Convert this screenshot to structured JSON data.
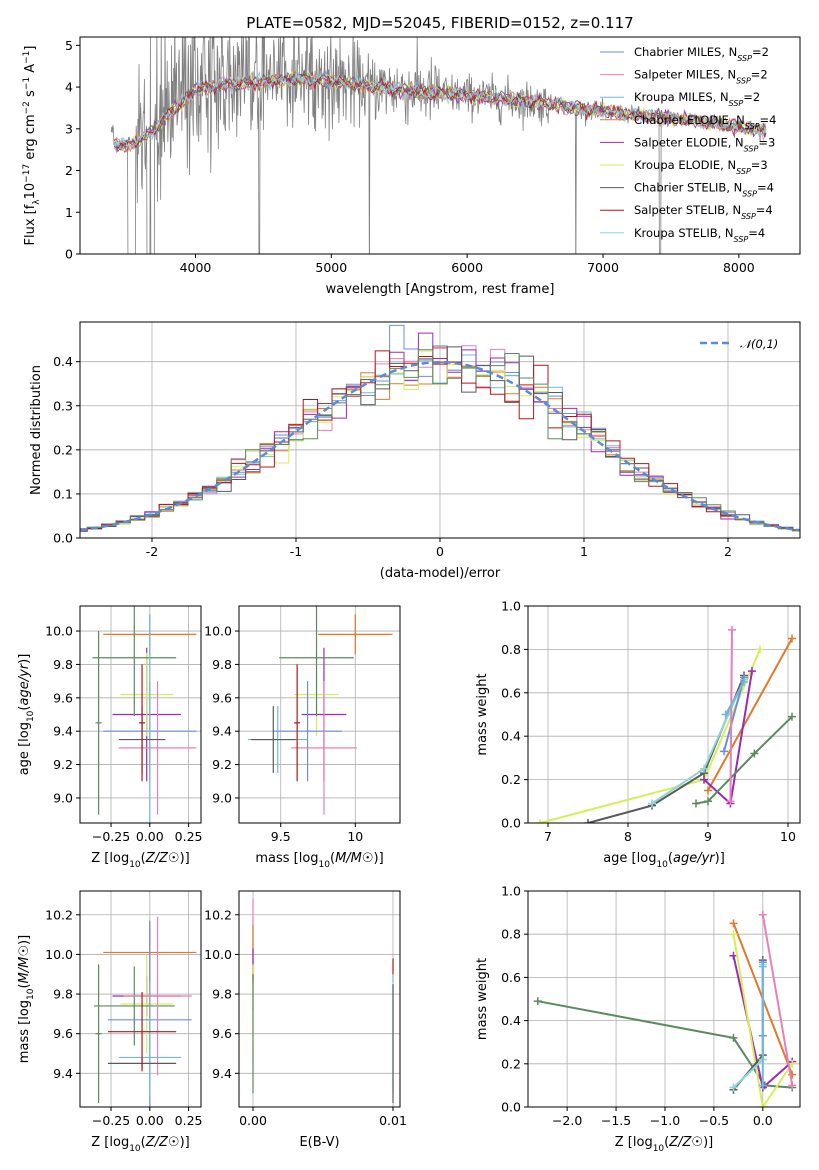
{
  "figure_title": "PLATE=0582, MJD=52045, FIBERID=0152, z=0.117",
  "colors": {
    "Chabrier MILES": "#6b8fe0",
    "Salpeter MILES": "#e87fb9",
    "Kroupa MILES": "#6fb9e0",
    "Chabrier ELODIE": "#e07a2a",
    "Salpeter ELODIE": "#9b2ab5",
    "Kroupa ELODIE": "#d7ee58",
    "Chabrier STELIB": "#5a5a5a",
    "Salpeter STELIB": "#b01818",
    "Kroupa STELIB": "#8fd5d8",
    "ELODIE green": "#5b8a60",
    "data": "#808080",
    "gauss": "#5b8bd8"
  },
  "chart_data": [
    {
      "id": "spectrum",
      "type": "line",
      "title": "PLATE=0582, MJD=52045, FIBERID=0152, z=0.117",
      "xlabel": "wavelength [Angstrom, rest frame]",
      "ylabel": "Flux [f_λ10^-17 erg cm^-2 s^-1 A^-1]",
      "xlim": [
        3150,
        8450
      ],
      "ylim": [
        0,
        5.2
      ],
      "xticks": [
        4000,
        5000,
        6000,
        7000,
        8000
      ],
      "yticks": [
        0,
        1,
        2,
        3,
        4,
        5
      ],
      "legend_position": "top-right",
      "legend": [
        {
          "name": "Chabrier MILES, N",
          "sub": "SSP",
          "suffix": "=2"
        },
        {
          "name": "Salpeter MILES, N",
          "sub": "SSP",
          "suffix": "=2"
        },
        {
          "name": "Kroupa MILES, N",
          "sub": "SSP",
          "suffix": "=2"
        },
        {
          "name": "Chabrier ELODIE, N",
          "sub": "SSP",
          "suffix": "=4"
        },
        {
          "name": "Salpeter ELODIE, N",
          "sub": "SSP",
          "suffix": "=3"
        },
        {
          "name": "Kroupa ELODIE, N",
          "sub": "SSP",
          "suffix": "=3"
        },
        {
          "name": "Chabrier STELIB, N",
          "sub": "SSP",
          "suffix": "=4"
        },
        {
          "name": "Salpeter STELIB, N",
          "sub": "SSP",
          "suffix": "=4"
        },
        {
          "name": "Kroupa STELIB, N",
          "sub": "SSP",
          "suffix": "=4"
        }
      ],
      "continuum": [
        [
          3400,
          2.65
        ],
        [
          3500,
          2.6
        ],
        [
          3600,
          2.75
        ],
        [
          3700,
          3.0
        ],
        [
          3800,
          3.35
        ],
        [
          3900,
          3.6
        ],
        [
          4000,
          3.95
        ],
        [
          4100,
          4.0
        ],
        [
          4200,
          4.05
        ],
        [
          4400,
          4.1
        ],
        [
          4600,
          4.15
        ],
        [
          4800,
          4.2
        ],
        [
          5000,
          4.15
        ],
        [
          5200,
          4.05
        ],
        [
          5500,
          3.95
        ],
        [
          5800,
          3.85
        ],
        [
          6000,
          3.8
        ],
        [
          6300,
          3.7
        ],
        [
          6600,
          3.6
        ],
        [
          6900,
          3.45
        ],
        [
          7200,
          3.35
        ],
        [
          7500,
          3.25
        ],
        [
          7800,
          3.15
        ],
        [
          8100,
          3.0
        ],
        [
          8200,
          2.95
        ]
      ]
    },
    {
      "id": "residuals",
      "type": "line",
      "xlabel": "(data-model)/error",
      "ylabel": "Normed distribution",
      "xlim": [
        -2.5,
        2.5
      ],
      "ylim": [
        0,
        0.49
      ],
      "xticks": [
        -2,
        -1,
        0,
        1,
        2
      ],
      "yticks": [
        0.0,
        0.1,
        0.2,
        0.3,
        0.4
      ],
      "grid": true,
      "legend_position": "top-right",
      "legend": [
        "N(0,1)"
      ]
    },
    {
      "id": "age-vs-Z",
      "type": "scatter",
      "xlabel": "Z [log10(Z/Z☉)]",
      "ylabel": "age  [log10(age/yr)]",
      "xlim": [
        -0.45,
        0.33
      ],
      "ylim": [
        8.85,
        10.15
      ],
      "xticks": [
        -0.25,
        0.0,
        0.25
      ],
      "xticklabels": [
        "−0.25",
        "0.00",
        "0.25"
      ],
      "yticks": [
        9.0,
        9.2,
        9.4,
        9.6,
        9.8,
        10.0
      ],
      "grid": true,
      "points": [
        {
          "series": "Chabrier ELODIE",
          "x": 0.0,
          "y": 9.98,
          "xerr": 0.3,
          "yerr": 0.12
        },
        {
          "series": "Salpeter ELODIE",
          "x": -0.02,
          "y": 9.5,
          "xerr": 0.22,
          "yerr": 0.4
        },
        {
          "series": "Kroupa ELODIE",
          "x": -0.02,
          "y": 9.62,
          "xerr": 0.17,
          "yerr": 0.25
        },
        {
          "series": "ELODIE green",
          "x": -0.1,
          "y": 9.84,
          "xerr": 0.27,
          "yerr": 0.35
        },
        {
          "series": "ELODIE green",
          "x": -0.33,
          "y": 9.45,
          "xerr": 0.02,
          "yerr": 0.55
        },
        {
          "series": "Chabrier MILES",
          "x": 0.0,
          "y": 9.4,
          "xerr": 0.3,
          "yerr": 0.3
        },
        {
          "series": "Salpeter MILES",
          "x": 0.05,
          "y": 9.3,
          "xerr": 0.25,
          "yerr": 0.4
        },
        {
          "series": "Kroupa MILES",
          "x": -0.0,
          "y": 9.4,
          "xerr": 0.02,
          "yerr": 0.7
        },
        {
          "series": "Chabrier STELIB",
          "x": -0.05,
          "y": 9.35,
          "xerr": 0.15,
          "yerr": 0.2
        },
        {
          "series": "Salpeter STELIB",
          "x": -0.05,
          "y": 9.45,
          "xerr": 0.02,
          "yerr": 0.35
        }
      ]
    },
    {
      "id": "age-vs-mass",
      "type": "scatter",
      "xlabel": "mass [log10(M/M☉)]",
      "xlim": [
        9.22,
        10.3
      ],
      "ylim": [
        8.85,
        10.15
      ],
      "xticks": [
        9.5,
        10.0
      ],
      "yticks": [
        9.0,
        9.2,
        9.4,
        9.6,
        9.8,
        10.0
      ],
      "grid": true,
      "points": [
        {
          "series": "Chabrier ELODIE",
          "x": 10.0,
          "y": 9.98,
          "xerr": 0.25,
          "yerr": 0.12
        },
        {
          "series": "Salpeter ELODIE",
          "x": 9.79,
          "y": 9.5,
          "xerr": 0.15,
          "yerr": 0.4
        },
        {
          "series": "Kroupa ELODIE",
          "x": 9.74,
          "y": 9.62,
          "xerr": 0.15,
          "yerr": 0.25
        },
        {
          "series": "ELODIE green",
          "x": 9.74,
          "y": 9.84,
          "xerr": 0.25,
          "yerr": 0.35
        },
        {
          "series": "Chabrier MILES",
          "x": 9.68,
          "y": 9.4,
          "xerr": 0.23,
          "yerr": 0.3
        },
        {
          "series": "Salpeter MILES",
          "x": 9.79,
          "y": 9.3,
          "xerr": 0.22,
          "yerr": 0.4
        },
        {
          "series": "Kroupa MILES",
          "x": 9.48,
          "y": 9.35,
          "xerr": 0.2,
          "yerr": 0.2
        },
        {
          "series": "Chabrier STELIB",
          "x": 9.45,
          "y": 9.35,
          "xerr": 0.15,
          "yerr": 0.2
        },
        {
          "series": "Salpeter STELIB",
          "x": 9.61,
          "y": 9.45,
          "xerr": 0.02,
          "yerr": 0.35
        }
      ]
    },
    {
      "id": "mass-weight-vs-age",
      "type": "line",
      "xlabel": "age  [log10(age/yr)]",
      "ylabel": "mass weight",
      "xlim": [
        6.75,
        10.15
      ],
      "ylim": [
        0,
        1.0
      ],
      "xticks": [
        7,
        8,
        9,
        10
      ],
      "yticks": [
        0.0,
        0.2,
        0.4,
        0.6,
        0.8,
        1.0
      ],
      "grid": true,
      "series": [
        {
          "name": "Kroupa ELODIE",
          "points": [
            [
              6.9,
              0.0
            ],
            [
              8.95,
              0.2
            ],
            [
              9.65,
              0.8
            ]
          ]
        },
        {
          "name": "Chabrier ELODIE",
          "points": [
            [
              9.0,
              0.15
            ],
            [
              10.05,
              0.85
            ]
          ]
        },
        {
          "name": "Salpeter ELODIE",
          "points": [
            [
              8.95,
              0.2
            ],
            [
              9.28,
              0.09
            ],
            [
              9.55,
              0.7
            ]
          ]
        },
        {
          "name": "ELODIE green",
          "points": [
            [
              8.85,
              0.09
            ],
            [
              9.0,
              0.1
            ],
            [
              9.58,
              0.32
            ],
            [
              10.05,
              0.49
            ]
          ]
        },
        {
          "name": "Chabrier STELIB",
          "points": [
            [
              7.5,
              0.0
            ],
            [
              8.3,
              0.08
            ],
            [
              8.95,
              0.23
            ],
            [
              9.45,
              0.68
            ]
          ]
        },
        {
          "name": "Kroupa STELIB",
          "points": [
            [
              8.3,
              0.09
            ],
            [
              8.95,
              0.25
            ],
            [
              9.45,
              0.66
            ]
          ]
        },
        {
          "name": "Chabrier MILES",
          "points": [
            [
              9.2,
              0.33
            ],
            [
              9.45,
              0.67
            ]
          ]
        },
        {
          "name": "Salpeter MILES",
          "points": [
            [
              9.28,
              0.1
            ],
            [
              9.3,
              0.89
            ]
          ]
        },
        {
          "name": "Kroupa MILES",
          "points": [
            [
              9.22,
              0.5
            ],
            [
              9.45,
              0.65
            ]
          ]
        }
      ]
    },
    {
      "id": "mass-vs-Z",
      "type": "scatter",
      "xlabel": "Z [log10(Z/Z☉)]",
      "ylabel": "mass [log10(M/M☉)]",
      "xlim": [
        -0.45,
        0.33
      ],
      "ylim": [
        9.23,
        10.32
      ],
      "xticks": [
        -0.25,
        0.0,
        0.25
      ],
      "xticklabels": [
        "−0.25",
        "0.00",
        "0.25"
      ],
      "yticks": [
        9.4,
        9.6,
        9.8,
        10.0,
        10.2
      ],
      "grid": true,
      "points": [
        {
          "series": "Chabrier ELODIE",
          "x": 0.0,
          "y": 10.01,
          "xerr": 0.3,
          "yerr": 0.15
        },
        {
          "series": "Salpeter ELODIE",
          "x": -0.02,
          "y": 9.79,
          "xerr": 0.22,
          "yerr": 0.1
        },
        {
          "series": "Kroupa ELODIE",
          "x": -0.02,
          "y": 9.75,
          "xerr": 0.17,
          "yerr": 0.25
        },
        {
          "series": "ELODIE green",
          "x": -0.1,
          "y": 9.74,
          "xerr": 0.26,
          "yerr": 0.2
        },
        {
          "series": "ELODIE green",
          "x": -0.33,
          "y": 9.6,
          "xerr": 0.02,
          "yerr": 0.35
        },
        {
          "series": "Chabrier MILES",
          "x": 0.0,
          "y": 9.67,
          "xerr": 0.27,
          "yerr": 0.5
        },
        {
          "series": "Salpeter MILES",
          "x": 0.05,
          "y": 9.79,
          "xerr": 0.22,
          "yerr": 0.4
        },
        {
          "series": "Kroupa MILES",
          "x": 0.0,
          "y": 9.48,
          "xerr": 0.2,
          "yerr": 0.2
        },
        {
          "series": "Chabrier STELIB",
          "x": -0.05,
          "y": 9.45,
          "xerr": 0.22,
          "yerr": 0.03
        },
        {
          "series": "Salpeter STELIB",
          "x": -0.05,
          "y": 9.61,
          "xerr": 0.22,
          "yerr": 0.2
        }
      ]
    },
    {
      "id": "mass-vs-EBV",
      "type": "scatter",
      "xlabel": "E(B-V)",
      "xlim": [
        -0.001,
        0.0105
      ],
      "ylim": [
        9.23,
        10.32
      ],
      "xticks": [
        0.0,
        0.01
      ],
      "xticklabels": [
        "0.00",
        "0.01"
      ],
      "yticks": [
        9.4,
        9.6,
        9.8,
        10.0,
        10.2
      ],
      "grid": true,
      "points": [
        {
          "series": "Salpeter MILES",
          "x": 0.0,
          "y": 10.0,
          "yerr": 0.28
        },
        {
          "series": "Chabrier ELODIE",
          "x": 0.0,
          "y": 10.0,
          "yerr": 0.15
        },
        {
          "series": "Salpeter ELODIE",
          "x": 0.0,
          "y": 9.95,
          "yerr": 0.08
        },
        {
          "series": "Kroupa ELODIE",
          "x": 0.0,
          "y": 9.7,
          "yerr": 0.25
        },
        {
          "series": "ELODIE green",
          "x": 0.0,
          "y": 9.6,
          "yerr": 0.3
        },
        {
          "series": "Salpeter STELIB",
          "x": 0.01,
          "y": 9.92,
          "yerr": 0.06
        },
        {
          "series": "Kroupa STELIB",
          "x": 0.01,
          "y": 9.6,
          "yerr": 0.3
        },
        {
          "series": "Chabrier STELIB",
          "x": 0.01,
          "y": 9.55,
          "yerr": 0.3
        }
      ]
    },
    {
      "id": "mass-weight-vs-Z",
      "type": "line",
      "xlabel": "Z [log10(Z/Z☉)]",
      "ylabel": "mass weight",
      "xlim": [
        -2.4,
        0.38
      ],
      "ylim": [
        0,
        1.0
      ],
      "xticks": [
        -2.0,
        -1.5,
        -1.0,
        -0.5,
        0.0
      ],
      "xticklabels": [
        "−2.0",
        "−1.5",
        "−1.0",
        "−0.5",
        "0.0"
      ],
      "yticks": [
        0.0,
        0.2,
        0.4,
        0.6,
        0.8,
        1.0
      ],
      "grid": true,
      "series": [
        {
          "name": "ELODIE green",
          "points": [
            [
              -2.3,
              0.49
            ],
            [
              -0.3,
              0.32
            ],
            [
              0.02,
              0.1
            ],
            [
              0.3,
              0.09
            ]
          ]
        },
        {
          "name": "Chabrier ELODIE",
          "points": [
            [
              -0.3,
              0.85
            ],
            [
              0.3,
              0.15
            ]
          ]
        },
        {
          "name": "Salpeter ELODIE",
          "points": [
            [
              -0.3,
              0.7
            ],
            [
              0.0,
              0.09
            ],
            [
              0.3,
              0.21
            ]
          ]
        },
        {
          "name": "Kroupa ELODIE",
          "points": [
            [
              -0.3,
              0.8
            ],
            [
              0.0,
              0.0
            ],
            [
              0.3,
              0.2
            ]
          ]
        },
        {
          "name": "Salpeter MILES",
          "points": [
            [
              0.0,
              0.89
            ],
            [
              0.3,
              0.1
            ]
          ]
        },
        {
          "name": "Chabrier STELIB",
          "points": [
            [
              -0.3,
              0.08
            ],
            [
              0.0,
              0.24
            ],
            [
              0.0,
              0.68
            ]
          ]
        },
        {
          "name": "Kroupa STELIB",
          "points": [
            [
              -0.3,
              0.09
            ],
            [
              0.0,
              0.22
            ],
            [
              0.0,
              0.66
            ]
          ]
        },
        {
          "name": "Chabrier MILES",
          "points": [
            [
              0.0,
              0.33
            ],
            [
              0.0,
              0.67
            ]
          ]
        },
        {
          "name": "Kroupa MILES",
          "points": [
            [
              0.0,
              0.1
            ],
            [
              0.0,
              0.65
            ]
          ]
        }
      ]
    }
  ]
}
